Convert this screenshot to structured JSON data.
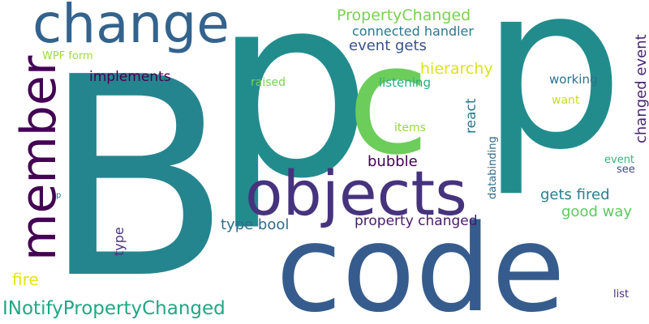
{
  "words": [
    {
      "text": "B",
      "color": "#25858e"
    },
    {
      "text": "p",
      "color": "#228c8d"
    },
    {
      "text": "p",
      "color": "#228c8d"
    },
    {
      "text": "c",
      "color": "#6ccd5a"
    },
    {
      "text": "code",
      "color": "#365c8d"
    },
    {
      "text": "objects",
      "color": "#46337e"
    },
    {
      "text": "change",
      "color": "#33638d"
    },
    {
      "text": "member",
      "color": "#440154"
    },
    {
      "text": "INotifyPropertyChanged",
      "color": "#21a685"
    },
    {
      "text": "PropertyChanged",
      "color": "#7ad151"
    },
    {
      "text": "connected handler",
      "color": "#2a788e"
    },
    {
      "text": "event gets",
      "color": "#3b528b"
    },
    {
      "text": "hierarchy",
      "color": "#dde318"
    },
    {
      "text": "listening",
      "color": "#27ad81"
    },
    {
      "text": "implements",
      "color": "#440154"
    },
    {
      "text": "WPF form",
      "color": "#a0da39"
    },
    {
      "text": "raised",
      "color": "#7ad151"
    },
    {
      "text": "working",
      "color": "#2c728e"
    },
    {
      "text": "want",
      "color": "#c8e020"
    },
    {
      "text": "changed event",
      "color": "#482475"
    },
    {
      "text": "react",
      "color": "#2a788e"
    },
    {
      "text": "items",
      "color": "#95d840"
    },
    {
      "text": "databinding",
      "color": "#2f6c8e"
    },
    {
      "text": "bubble",
      "color": "#440154"
    },
    {
      "text": "gets fired",
      "color": "#27808e"
    },
    {
      "text": "good way",
      "color": "#5ec962"
    },
    {
      "text": "type bool",
      "color": "#2f6c8e"
    },
    {
      "text": "property changed",
      "color": "#481b6d"
    },
    {
      "text": "type",
      "color": "#46337e"
    },
    {
      "text": "fire",
      "color": "#e5e419"
    },
    {
      "text": "event",
      "color": "#35b779"
    },
    {
      "text": "see",
      "color": "#3e4989"
    },
    {
      "text": "list",
      "color": "#472d7b"
    },
    {
      "text": "p",
      "color": "#2a788e"
    }
  ]
}
